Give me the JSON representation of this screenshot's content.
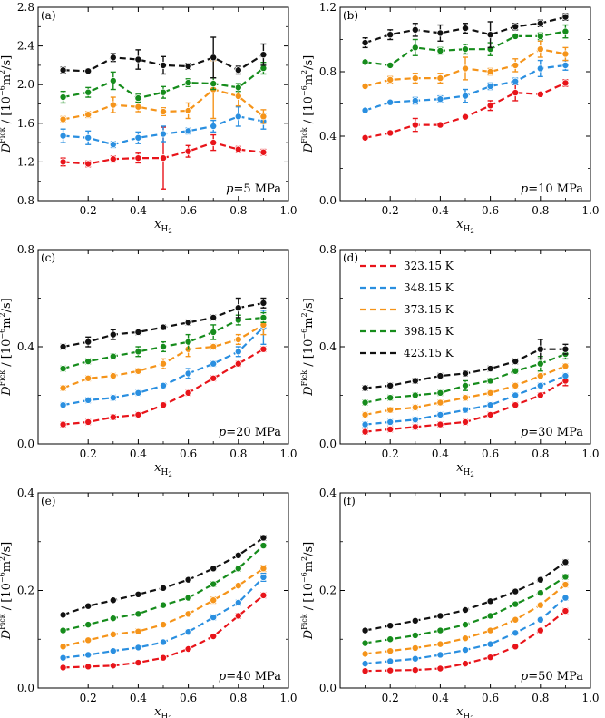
{
  "legend": [
    "323.15 K",
    "348.15 K",
    "373.15 K",
    "398.15 K",
    "423.15 K"
  ],
  "colors": [
    "#e8141a",
    "#2a8fe0",
    "#f5941a",
    "#168c1c",
    "#111111"
  ],
  "axis_text": {
    "xlabel": "x",
    "xlabel_sub": "H",
    "xlabel_sub2": "2",
    "ylabel_d": "D",
    "ylabel_sup": "Fick",
    "ylabel_slash": "/",
    "ylabel_units_a": "[10",
    "ylabel_units_exp": "−6",
    "ylabel_units_b": "m",
    "ylabel_units_exp2": "2",
    "ylabel_units_c": "/s]"
  },
  "chart_data": [
    {
      "type": "line",
      "panel": "(a)",
      "annotation_var": "p",
      "annotation_value": "=5 MPa",
      "xlim": [
        0,
        1.0
      ],
      "ylim": [
        0.8,
        2.8
      ],
      "xticks": [
        "0.2",
        "0.4",
        "0.6",
        "0.8",
        "1.0"
      ],
      "xtick_values": [
        0.2,
        0.4,
        0.6,
        0.8,
        1.0
      ],
      "yticks": [
        "0.8",
        "1.2",
        "1.6",
        "2.0",
        "2.4",
        "2.8"
      ],
      "ytick_values": [
        0.8,
        1.2,
        1.6,
        2.0,
        2.4,
        2.8
      ],
      "x": [
        0.1,
        0.2,
        0.3,
        0.4,
        0.5,
        0.6,
        0.7,
        0.8,
        0.9
      ],
      "series": [
        {
          "name": "323.15 K",
          "values": [
            1.2,
            1.18,
            1.23,
            1.24,
            1.24,
            1.31,
            1.4,
            1.33,
            1.3
          ],
          "errors": [
            0.04,
            0.03,
            0.03,
            0.05,
            0.32,
            0.06,
            0.08,
            0.03,
            0.03
          ]
        },
        {
          "name": "348.15 K",
          "values": [
            1.47,
            1.45,
            1.38,
            1.45,
            1.49,
            1.52,
            1.57,
            1.67,
            1.62
          ],
          "errors": [
            0.07,
            0.07,
            0.03,
            0.06,
            0.08,
            0.03,
            0.06,
            0.1,
            0.08
          ]
        },
        {
          "name": "373.15 K",
          "values": [
            1.64,
            1.69,
            1.79,
            1.77,
            1.72,
            1.73,
            1.95,
            1.88,
            1.67
          ],
          "errors": [
            0.03,
            0.03,
            0.08,
            0.05,
            0.04,
            0.08,
            0.3,
            0.1,
            0.07
          ]
        },
        {
          "name": "398.15 K",
          "values": [
            1.87,
            1.92,
            2.04,
            1.86,
            1.92,
            2.02,
            2.01,
            1.97,
            2.17
          ],
          "errors": [
            0.06,
            0.05,
            0.09,
            0.04,
            0.06,
            0.04,
            0.06,
            0.04,
            0.06
          ]
        },
        {
          "name": "423.15 K",
          "values": [
            2.15,
            2.14,
            2.28,
            2.26,
            2.2,
            2.19,
            2.28,
            2.15,
            2.31
          ],
          "errors": [
            0.03,
            0.02,
            0.04,
            0.1,
            0.09,
            0.03,
            0.21,
            0.04,
            0.11
          ]
        }
      ]
    },
    {
      "type": "line",
      "panel": "(b)",
      "annotation_var": "p",
      "annotation_value": "=10 MPa",
      "xlim": [
        0,
        1.0
      ],
      "ylim": [
        0,
        1.2
      ],
      "xticks": [
        "0.2",
        "0.4",
        "0.6",
        "0.8",
        "1.0"
      ],
      "xtick_values": [
        0.2,
        0.4,
        0.6,
        0.8,
        1.0
      ],
      "yticks": [
        "0.0",
        "0.4",
        "0.8",
        "1.2"
      ],
      "ytick_values": [
        0,
        0.4,
        0.8,
        1.2
      ],
      "x": [
        0.1,
        0.2,
        0.3,
        0.4,
        0.5,
        0.6,
        0.7,
        0.8,
        0.9
      ],
      "series": [
        {
          "name": "323.15 K",
          "values": [
            0.39,
            0.42,
            0.47,
            0.47,
            0.52,
            0.59,
            0.67,
            0.66,
            0.73
          ],
          "errors": [
            0.01,
            0.01,
            0.04,
            0.01,
            0.01,
            0.03,
            0.05,
            0.01,
            0.02
          ]
        },
        {
          "name": "348.15 K",
          "values": [
            0.56,
            0.61,
            0.62,
            0.63,
            0.65,
            0.71,
            0.74,
            0.82,
            0.84
          ],
          "errors": [
            0.01,
            0.01,
            0.02,
            0.02,
            0.04,
            0.02,
            0.02,
            0.05,
            0.03
          ]
        },
        {
          "name": "373.15 K",
          "values": [
            0.71,
            0.75,
            0.76,
            0.76,
            0.82,
            0.8,
            0.84,
            0.94,
            0.91
          ],
          "errors": [
            0.01,
            0.02,
            0.03,
            0.03,
            0.07,
            0.02,
            0.04,
            0.05,
            0.04
          ]
        },
        {
          "name": "398.15 K",
          "values": [
            0.86,
            0.84,
            0.95,
            0.93,
            0.94,
            0.94,
            1.02,
            1.02,
            1.05
          ],
          "errors": [
            0.01,
            0.01,
            0.05,
            0.02,
            0.03,
            0.04,
            0.01,
            0.02,
            0.04
          ]
        },
        {
          "name": "423.15 K",
          "values": [
            0.98,
            1.03,
            1.06,
            1.04,
            1.07,
            1.03,
            1.08,
            1.1,
            1.14
          ],
          "errors": [
            0.03,
            0.03,
            0.04,
            0.05,
            0.03,
            0.08,
            0.02,
            0.02,
            0.02
          ]
        }
      ]
    },
    {
      "type": "line",
      "panel": "(c)",
      "annotation_var": "p",
      "annotation_value": "=20 MPa",
      "xlim": [
        0,
        1.0
      ],
      "ylim": [
        0,
        0.8
      ],
      "xticks": [
        "0.2",
        "0.4",
        "0.6",
        "0.8",
        "1.0"
      ],
      "xtick_values": [
        0.2,
        0.4,
        0.6,
        0.8,
        1.0
      ],
      "yticks": [
        "0.0",
        "0.4",
        "0.8"
      ],
      "ytick_values": [
        0,
        0.4,
        0.8
      ],
      "x": [
        0.1,
        0.2,
        0.3,
        0.4,
        0.5,
        0.6,
        0.7,
        0.8,
        0.9
      ],
      "series": [
        {
          "name": "323.15 K",
          "values": [
            0.08,
            0.09,
            0.11,
            0.12,
            0.16,
            0.21,
            0.27,
            0.33,
            0.39
          ],
          "errors": [
            0.01,
            0.01,
            0.01,
            0.01,
            0.01,
            0.01,
            0.01,
            0.01,
            0.01
          ]
        },
        {
          "name": "348.15 K",
          "values": [
            0.16,
            0.18,
            0.19,
            0.21,
            0.24,
            0.29,
            0.33,
            0.38,
            0.48
          ],
          "errors": [
            0.01,
            0.01,
            0.01,
            0.01,
            0.01,
            0.02,
            0.01,
            0.02,
            0.07
          ]
        },
        {
          "name": "373.15 K",
          "values": [
            0.23,
            0.27,
            0.28,
            0.3,
            0.33,
            0.39,
            0.4,
            0.43,
            0.49
          ],
          "errors": [
            0.01,
            0.01,
            0.01,
            0.01,
            0.02,
            0.03,
            0.01,
            0.02,
            0.04
          ]
        },
        {
          "name": "398.15 K",
          "values": [
            0.31,
            0.34,
            0.36,
            0.38,
            0.4,
            0.42,
            0.46,
            0.51,
            0.52
          ],
          "errors": [
            0.01,
            0.01,
            0.01,
            0.02,
            0.02,
            0.03,
            0.03,
            0.02,
            0.02
          ]
        },
        {
          "name": "423.15 K",
          "values": [
            0.4,
            0.42,
            0.45,
            0.46,
            0.48,
            0.5,
            0.52,
            0.56,
            0.58
          ],
          "errors": [
            0.01,
            0.02,
            0.02,
            0.01,
            0.01,
            0.01,
            0.01,
            0.04,
            0.02
          ]
        }
      ]
    },
    {
      "type": "line",
      "panel": "(d)",
      "annotation_var": "p",
      "annotation_value": "=30 MPa",
      "xlim": [
        0,
        1.0
      ],
      "ylim": [
        0,
        0.8
      ],
      "xticks": [
        "0.2",
        "0.4",
        "0.6",
        "0.8",
        "1.0"
      ],
      "xtick_values": [
        0.2,
        0.4,
        0.6,
        0.8,
        1.0
      ],
      "yticks": [
        "0.0",
        "0.4",
        "0.8"
      ],
      "ytick_values": [
        0,
        0.4,
        0.8
      ],
      "x": [
        0.1,
        0.2,
        0.3,
        0.4,
        0.5,
        0.6,
        0.7,
        0.8,
        0.9
      ],
      "legend_position": "top-left",
      "series": [
        {
          "name": "323.15 K",
          "values": [
            0.05,
            0.06,
            0.07,
            0.08,
            0.09,
            0.12,
            0.16,
            0.2,
            0.26
          ],
          "errors": [
            0.01,
            0.01,
            0.01,
            0.01,
            0.01,
            0.01,
            0.01,
            0.01,
            0.02
          ]
        },
        {
          "name": "348.15 K",
          "values": [
            0.08,
            0.09,
            0.1,
            0.12,
            0.14,
            0.16,
            0.2,
            0.24,
            0.28
          ],
          "errors": [
            0.01,
            0.01,
            0.01,
            0.01,
            0.01,
            0.01,
            0.01,
            0.01,
            0.01
          ]
        },
        {
          "name": "373.15 K",
          "values": [
            0.12,
            0.14,
            0.15,
            0.17,
            0.19,
            0.21,
            0.24,
            0.28,
            0.32
          ],
          "errors": [
            0.01,
            0.01,
            0.01,
            0.01,
            0.01,
            0.01,
            0.01,
            0.01,
            0.01
          ]
        },
        {
          "name": "398.15 K",
          "values": [
            0.17,
            0.19,
            0.2,
            0.21,
            0.24,
            0.26,
            0.3,
            0.33,
            0.37
          ],
          "errors": [
            0.01,
            0.01,
            0.01,
            0.01,
            0.02,
            0.01,
            0.01,
            0.03,
            0.02
          ]
        },
        {
          "name": "423.15 K",
          "values": [
            0.23,
            0.24,
            0.26,
            0.28,
            0.29,
            0.31,
            0.34,
            0.39,
            0.39
          ],
          "errors": [
            0.01,
            0.01,
            0.01,
            0.01,
            0.01,
            0.01,
            0.01,
            0.04,
            0.02
          ]
        }
      ]
    },
    {
      "type": "line",
      "panel": "(e)",
      "annotation_var": "p",
      "annotation_value": "=40 MPa",
      "xlim": [
        0,
        1.0
      ],
      "ylim": [
        0,
        0.4
      ],
      "xticks": [
        "0.2",
        "0.4",
        "0.6",
        "0.8",
        "1.0"
      ],
      "xtick_values": [
        0.2,
        0.4,
        0.6,
        0.8,
        1.0
      ],
      "yticks": [
        "0.0",
        "0.2",
        "0.4"
      ],
      "ytick_values": [
        0,
        0.2,
        0.4
      ],
      "x": [
        0.1,
        0.2,
        0.3,
        0.4,
        0.5,
        0.6,
        0.7,
        0.8,
        0.9
      ],
      "series": [
        {
          "name": "323.15 K",
          "values": [
            0.042,
            0.044,
            0.046,
            0.052,
            0.062,
            0.08,
            0.106,
            0.148,
            0.19
          ],
          "errors": [
            0.003,
            0.003,
            0.003,
            0.003,
            0.003,
            0.003,
            0.003,
            0.005,
            0.005
          ]
        },
        {
          "name": "348.15 K",
          "values": [
            0.062,
            0.068,
            0.076,
            0.083,
            0.094,
            0.115,
            0.145,
            0.175,
            0.227
          ],
          "errors": [
            0.003,
            0.003,
            0.003,
            0.003,
            0.003,
            0.004,
            0.005,
            0.005,
            0.008
          ]
        },
        {
          "name": "373.15 K",
          "values": [
            0.085,
            0.098,
            0.11,
            0.116,
            0.13,
            0.152,
            0.18,
            0.21,
            0.245
          ],
          "errors": [
            0.003,
            0.003,
            0.003,
            0.005,
            0.003,
            0.004,
            0.006,
            0.004,
            0.006
          ]
        },
        {
          "name": "398.15 K",
          "values": [
            0.118,
            0.13,
            0.143,
            0.152,
            0.17,
            0.185,
            0.213,
            0.245,
            0.292
          ],
          "errors": [
            0.003,
            0.003,
            0.003,
            0.003,
            0.004,
            0.004,
            0.005,
            0.005,
            0.004
          ]
        },
        {
          "name": "423.15 K",
          "values": [
            0.15,
            0.168,
            0.18,
            0.192,
            0.205,
            0.222,
            0.245,
            0.272,
            0.308
          ],
          "errors": [
            0.003,
            0.003,
            0.003,
            0.003,
            0.003,
            0.004,
            0.004,
            0.004,
            0.005
          ]
        }
      ]
    },
    {
      "type": "line",
      "panel": "(f)",
      "annotation_var": "p",
      "annotation_value": "=50 MPa",
      "xlim": [
        0,
        1.0
      ],
      "ylim": [
        0,
        0.4
      ],
      "xticks": [
        "0.2",
        "0.4",
        "0.6",
        "0.8",
        "1.0"
      ],
      "xtick_values": [
        0.2,
        0.4,
        0.6,
        0.8,
        1.0
      ],
      "yticks": [
        "0.0",
        "0.2",
        "0.4"
      ],
      "ytick_values": [
        0,
        0.2,
        0.4
      ],
      "x": [
        0.1,
        0.2,
        0.3,
        0.4,
        0.5,
        0.6,
        0.7,
        0.8,
        0.9
      ],
      "series": [
        {
          "name": "323.15 K",
          "values": [
            0.035,
            0.036,
            0.037,
            0.04,
            0.05,
            0.063,
            0.085,
            0.118,
            0.158
          ],
          "errors": [
            0.003,
            0.003,
            0.003,
            0.003,
            0.003,
            0.003,
            0.003,
            0.004,
            0.005
          ]
        },
        {
          "name": "348.15 K",
          "values": [
            0.05,
            0.055,
            0.06,
            0.068,
            0.078,
            0.09,
            0.113,
            0.14,
            0.185
          ],
          "errors": [
            0.003,
            0.003,
            0.003,
            0.003,
            0.003,
            0.003,
            0.004,
            0.004,
            0.005
          ]
        },
        {
          "name": "373.15 K",
          "values": [
            0.07,
            0.076,
            0.082,
            0.09,
            0.102,
            0.118,
            0.14,
            0.17,
            0.212
          ],
          "errors": [
            0.003,
            0.003,
            0.003,
            0.003,
            0.003,
            0.003,
            0.004,
            0.004,
            0.005
          ]
        },
        {
          "name": "398.15 K",
          "values": [
            0.092,
            0.1,
            0.108,
            0.118,
            0.13,
            0.148,
            0.172,
            0.195,
            0.228
          ],
          "errors": [
            0.003,
            0.003,
            0.003,
            0.003,
            0.003,
            0.004,
            0.004,
            0.004,
            0.005
          ]
        },
        {
          "name": "423.15 K",
          "values": [
            0.118,
            0.128,
            0.138,
            0.148,
            0.16,
            0.178,
            0.198,
            0.222,
            0.258
          ],
          "errors": [
            0.003,
            0.003,
            0.003,
            0.003,
            0.003,
            0.003,
            0.004,
            0.004,
            0.005
          ]
        }
      ]
    }
  ]
}
